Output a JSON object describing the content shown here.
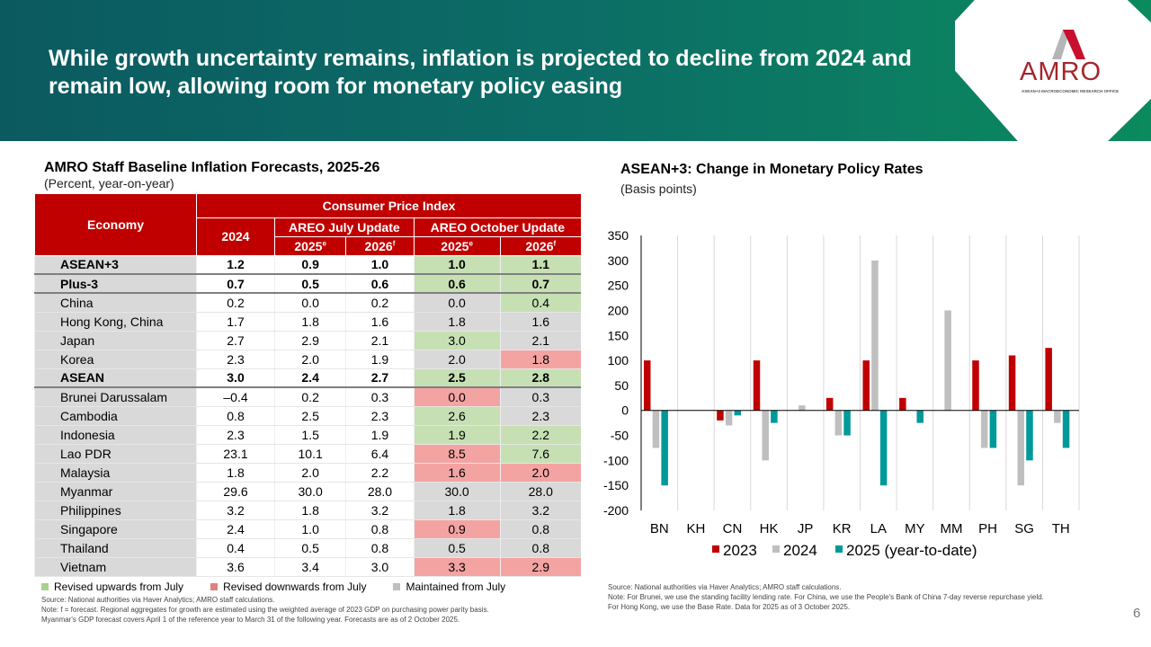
{
  "header": {
    "title": "While growth uncertainty remains, inflation is projected to decline from 2024 and remain low, allowing room for monetary policy easing",
    "logo": "AMRO",
    "logo_sub": "ASEAN+3 MACROECONOMIC RESEARCH OFFICE"
  },
  "table": {
    "title": "AMRO Staff Baseline Inflation Forecasts, 2025-26",
    "subtitle": "(Percent, year-on-year)",
    "headers": {
      "economy": "Economy",
      "cpi": "Consumer Price Index",
      "y2024": "2024",
      "july": "AREO July Update",
      "october": "AREO October Update",
      "y2025": "2025",
      "y2026": "2026",
      "sup_e": "e",
      "sup_f": "f"
    },
    "colors": {
      "up": "#c6e0b4",
      "down": "#f4a3a3",
      "same": "#d9d9d9"
    },
    "rows": [
      {
        "economy": "ASEAN+3",
        "agg": true,
        "values": [
          "1.2",
          "0.9",
          "1.0",
          "1.0",
          "1.1"
        ],
        "status": [
          "up",
          "up"
        ]
      },
      {
        "economy": "Plus-3",
        "agg": true,
        "values": [
          "0.7",
          "0.5",
          "0.6",
          "0.6",
          "0.7"
        ],
        "status": [
          "up",
          "up"
        ]
      },
      {
        "economy": "China",
        "values": [
          "0.2",
          "0.0",
          "0.2",
          "0.0",
          "0.4"
        ],
        "status": [
          "same",
          "up"
        ]
      },
      {
        "economy": "Hong Kong, China",
        "values": [
          "1.7",
          "1.8",
          "1.6",
          "1.8",
          "1.6"
        ],
        "status": [
          "same",
          "same"
        ]
      },
      {
        "economy": "Japan",
        "values": [
          "2.7",
          "2.9",
          "2.1",
          "3.0",
          "2.1"
        ],
        "status": [
          "up",
          "same"
        ]
      },
      {
        "economy": "Korea",
        "values": [
          "2.3",
          "2.0",
          "1.9",
          "2.0",
          "1.8"
        ],
        "status": [
          "same",
          "down"
        ]
      },
      {
        "economy": "ASEAN",
        "agg": true,
        "values": [
          "3.0",
          "2.4",
          "2.7",
          "2.5",
          "2.8"
        ],
        "status": [
          "up",
          "up"
        ]
      },
      {
        "economy": "Brunei Darussalam",
        "values": [
          "–0.4",
          "0.2",
          "0.3",
          "0.0",
          "0.3"
        ],
        "status": [
          "down",
          "same"
        ]
      },
      {
        "economy": "Cambodia",
        "values": [
          "0.8",
          "2.5",
          "2.3",
          "2.6",
          "2.3"
        ],
        "status": [
          "up",
          "same"
        ]
      },
      {
        "economy": "Indonesia",
        "values": [
          "2.3",
          "1.5",
          "1.9",
          "1.9",
          "2.2"
        ],
        "status": [
          "up",
          "up"
        ]
      },
      {
        "economy": "Lao PDR",
        "values": [
          "23.1",
          "10.1",
          "6.4",
          "8.5",
          "7.6"
        ],
        "status": [
          "down",
          "up"
        ]
      },
      {
        "economy": "Malaysia",
        "values": [
          "1.8",
          "2.0",
          "2.2",
          "1.6",
          "2.0"
        ],
        "status": [
          "down",
          "down"
        ]
      },
      {
        "economy": "Myanmar",
        "values": [
          "29.6",
          "30.0",
          "28.0",
          "30.0",
          "28.0"
        ],
        "status": [
          "same",
          "same"
        ]
      },
      {
        "economy": "Philippines",
        "values": [
          "3.2",
          "1.8",
          "3.2",
          "1.8",
          "3.2"
        ],
        "status": [
          "same",
          "same"
        ]
      },
      {
        "economy": "Singapore",
        "values": [
          "2.4",
          "1.0",
          "0.8",
          "0.9",
          "0.8"
        ],
        "status": [
          "down",
          "same"
        ]
      },
      {
        "economy": "Thailand",
        "values": [
          "0.4",
          "0.5",
          "0.8",
          "0.5",
          "0.8"
        ],
        "status": [
          "same",
          "same"
        ]
      },
      {
        "economy": "Vietnam",
        "values": [
          "3.6",
          "3.4",
          "3.0",
          "3.3",
          "2.9"
        ],
        "status": [
          "down",
          "down"
        ]
      }
    ],
    "legend": [
      "Revised upwards from July",
      "Revised downwards from July",
      "Maintained from July"
    ],
    "source": "Source: National authorities via Haver Analytics; AMRO staff calculations.",
    "note1": "Note: f = forecast. Regional aggregates for growth are estimated using the weighted average of 2023 GDP on purchasing power parity basis.",
    "note2": "Myanmar's GDP forecast covers April 1 of the reference year to March 31 of the following year. Forecasts are as of 2 October 2025."
  },
  "chart_data": {
    "type": "bar",
    "title": "ASEAN+3: Change in Monetary Policy Rates",
    "subtitle": "(Basis points)",
    "categories": [
      "BN",
      "KH",
      "CN",
      "HK",
      "JP",
      "KR",
      "LA",
      "MY",
      "MM",
      "PH",
      "SG",
      "TH"
    ],
    "series": [
      {
        "name": "2023",
        "color": "#c00000",
        "values": [
          100,
          null,
          -20,
          100,
          null,
          25,
          100,
          25,
          null,
          100,
          110,
          125
        ]
      },
      {
        "name": "2024",
        "color": "#bfbfbf",
        "values": [
          -75,
          null,
          -30,
          -100,
          10,
          -50,
          300,
          null,
          200,
          -75,
          -150,
          -25
        ]
      },
      {
        "name": "2025 (year-to-date)",
        "color": "#009999",
        "values": [
          -150,
          null,
          -10,
          -25,
          null,
          -50,
          -150,
          -25,
          null,
          -75,
          -100,
          -75
        ]
      }
    ],
    "ylim": [
      -200,
      350
    ],
    "yticks": [
      -200,
      -150,
      -100,
      -50,
      0,
      50,
      100,
      150,
      200,
      250,
      300,
      350
    ],
    "grid": "vertical category separators",
    "legend": "bottom",
    "source": "Source: National authorities via Haver Analytics; AMRO staff calculations.",
    "note1": "Note: For Brunei, we use the standing facility lending rate. For China, we use the People's Bank of China 7-day reverse repurchase yield.",
    "note2": "For Hong Kong, we use the Base Rate. Data for 2025 as of 3 October 2025."
  },
  "page": "6"
}
